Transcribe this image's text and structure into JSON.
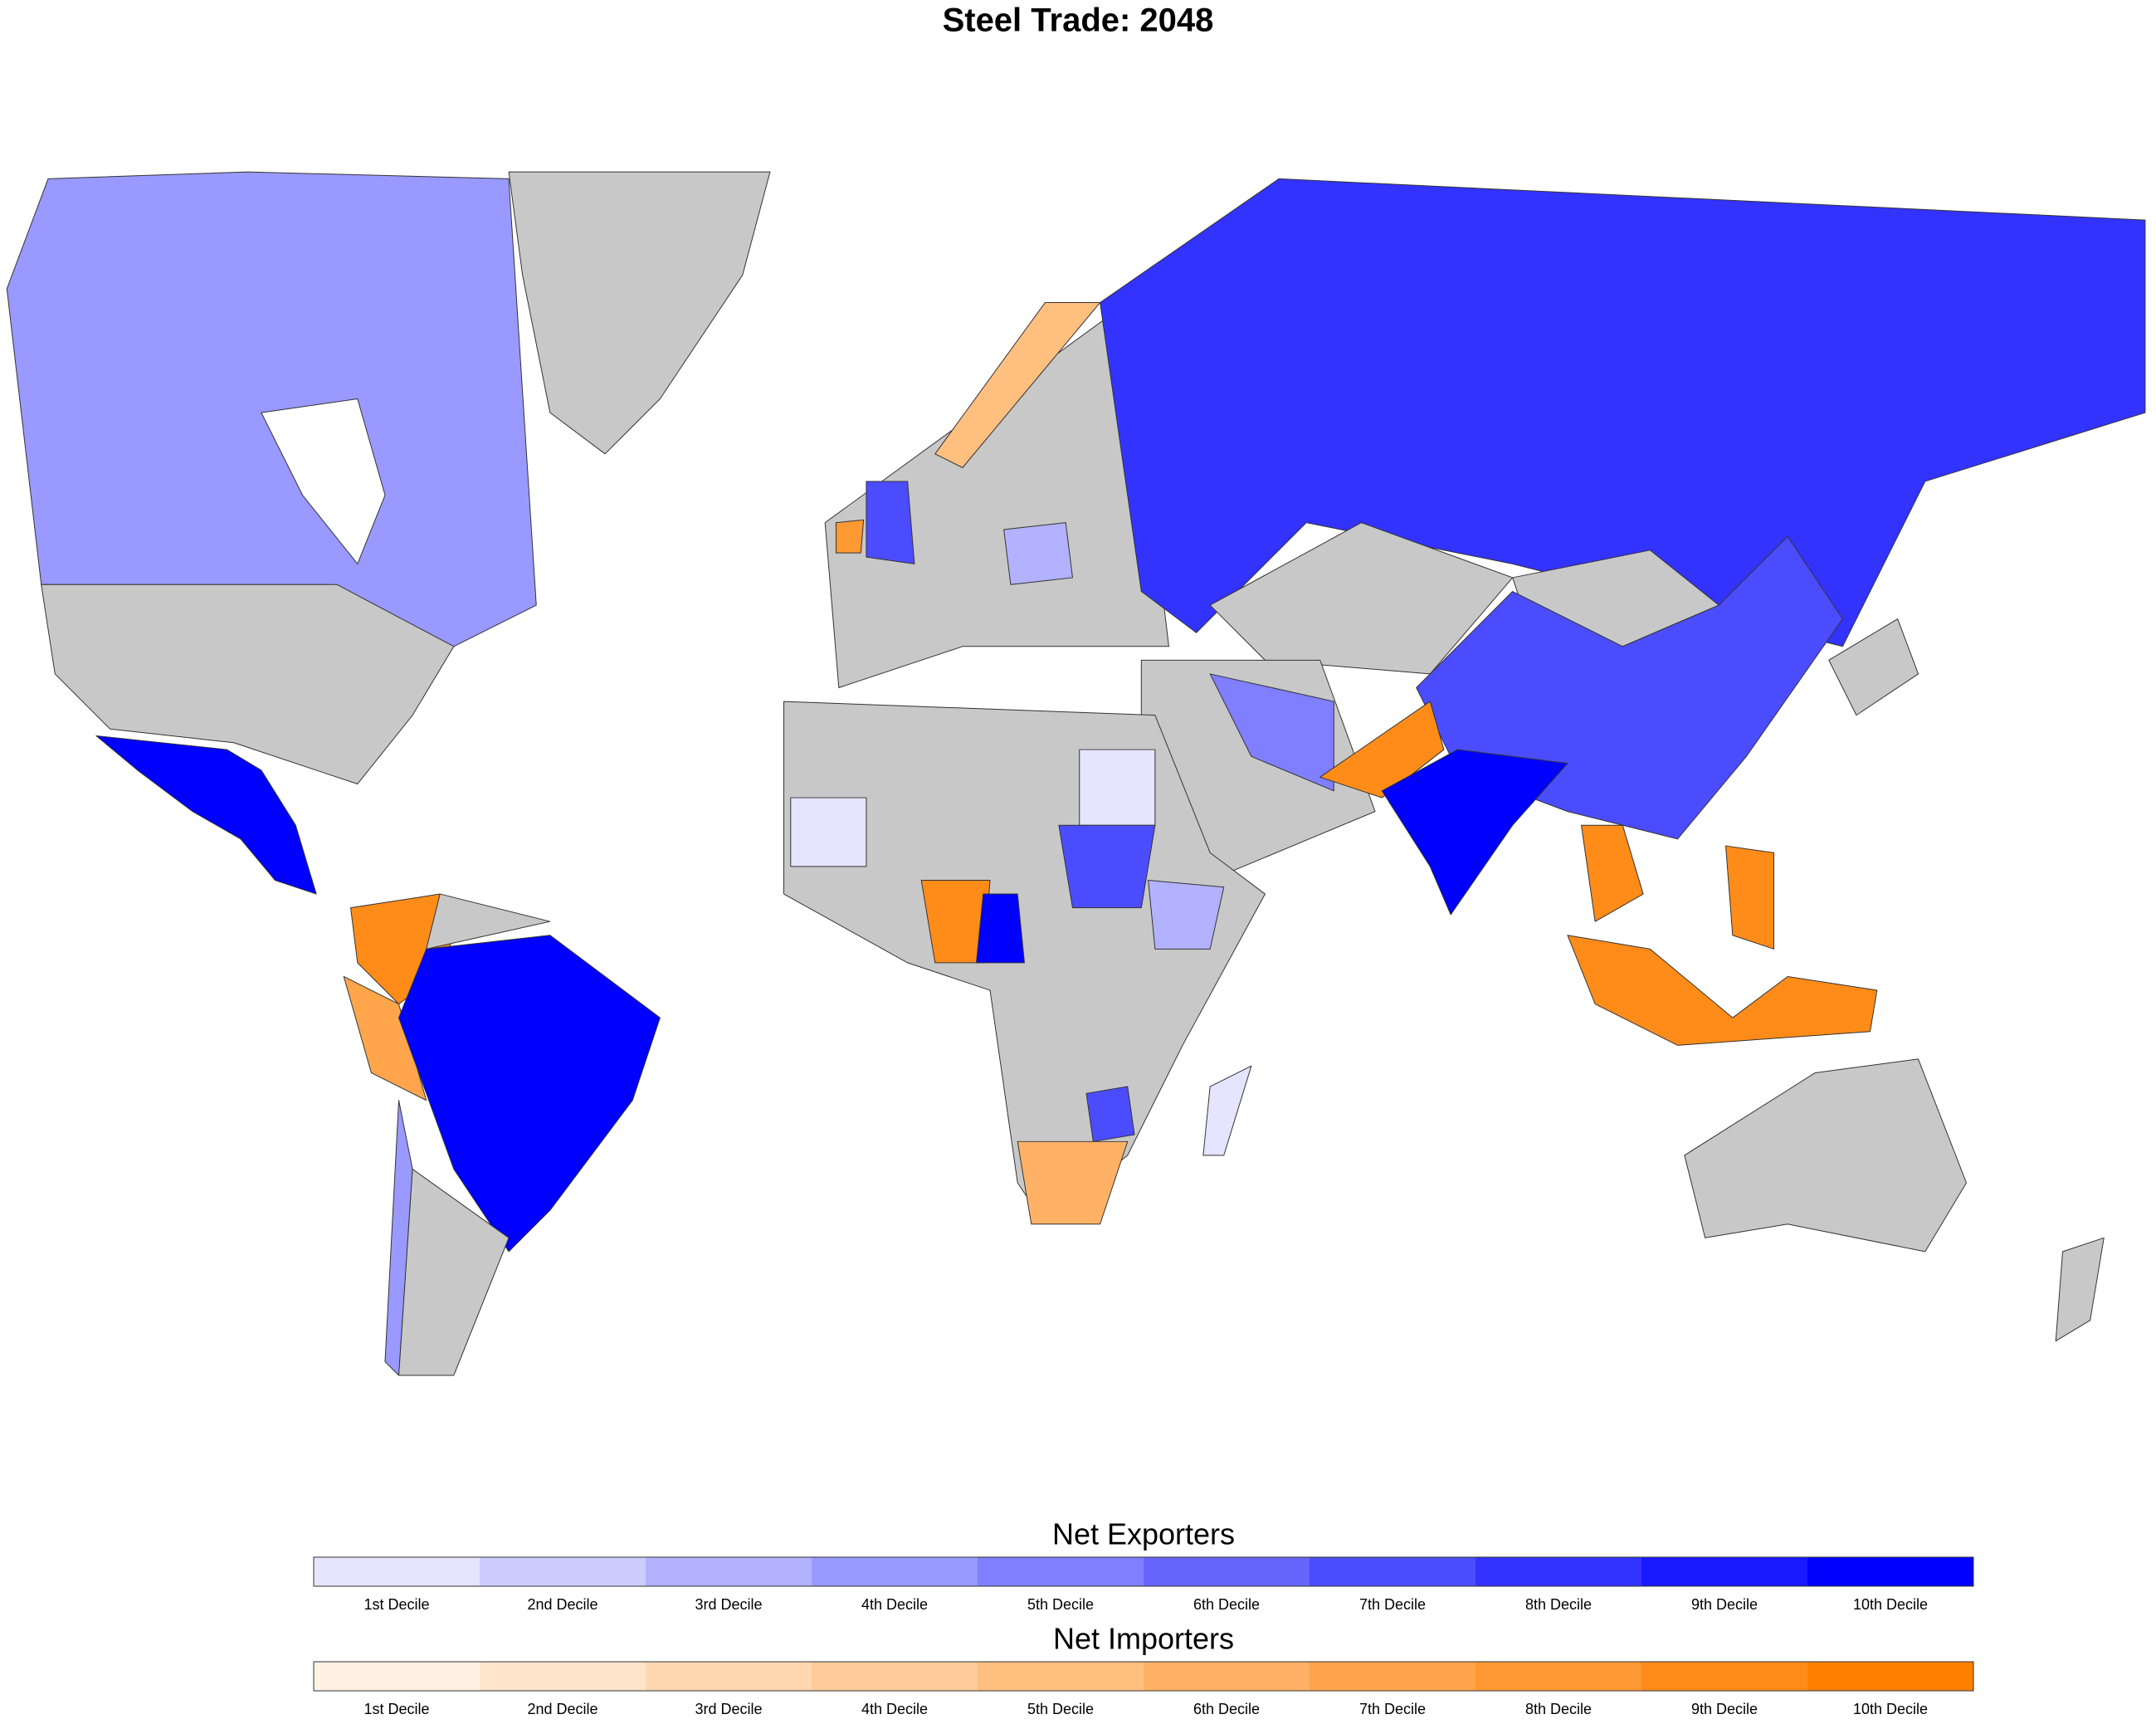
{
  "title": "Steel Trade: 2048",
  "legends": [
    {
      "title": "Net Exporters",
      "labels": [
        "1st Decile",
        "2nd Decile",
        "3rd Decile",
        "4th Decile",
        "5th Decile",
        "6th Decile",
        "7th Decile",
        "8th Decile",
        "9th Decile",
        "10th Decile"
      ],
      "colors": [
        "#e5e5ff",
        "#ccccff",
        "#b2b2ff",
        "#9999ff",
        "#7f7fff",
        "#6666ff",
        "#4c4cff",
        "#3333ff",
        "#1919ff",
        "#0000ff"
      ]
    },
    {
      "title": "Net Importers",
      "labels": [
        "1st Decile",
        "2nd Decile",
        "3rd Decile",
        "4th Decile",
        "5th Decile",
        "6th Decile",
        "7th Decile",
        "8th Decile",
        "9th Decile",
        "10th Decile"
      ],
      "colors": [
        "#fff2e5",
        "#ffe5cc",
        "#ffd8b2",
        "#ffcb99",
        "#ffbf7f",
        "#ffb266",
        "#ffa54c",
        "#ff9933",
        "#ff8c19",
        "#ff7f00"
      ]
    }
  ]
}
